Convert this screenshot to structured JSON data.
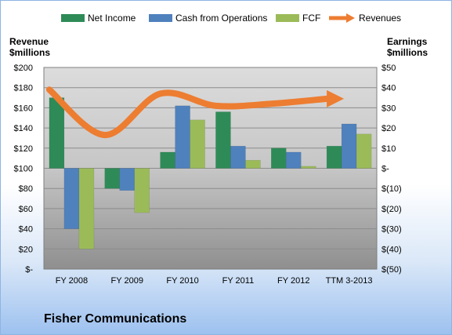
{
  "chart_data": {
    "type": "bar",
    "title": "",
    "footer_title": "Fisher Communications",
    "left_axis_title": [
      "Revenue",
      "$millions"
    ],
    "right_axis_title": [
      "Earnings",
      "$millions"
    ],
    "categories": [
      "FY 2008",
      "FY 2009",
      "FY 2010",
      "FY 2011",
      "FY 2012",
      "TTM 3-2013"
    ],
    "left_ticks": [
      "$-",
      "$20",
      "$40",
      "$60",
      "$80",
      "$100",
      "$120",
      "$140",
      "$160",
      "$180",
      "$200"
    ],
    "right_ticks": [
      "$(50)",
      "$(40)",
      "$(30)",
      "$(20)",
      "$(10)",
      "$-",
      "$10",
      "$20",
      "$30",
      "$40",
      "$50"
    ],
    "ylim_left": [
      0,
      200
    ],
    "ylim_right": [
      -50,
      50
    ],
    "legend_position": "top",
    "grid": true,
    "series": [
      {
        "name": "Net Income",
        "axis": "right",
        "kind": "bar",
        "color": "#2e8b57",
        "values": [
          35,
          -10,
          8,
          28,
          10,
          11
        ]
      },
      {
        "name": "Cash from Operations",
        "axis": "right",
        "kind": "bar",
        "color": "#4f81bd",
        "values": [
          -30,
          -11,
          31,
          11,
          8,
          22
        ]
      },
      {
        "name": "FCF",
        "axis": "right",
        "kind": "bar",
        "color": "#9bbb59",
        "values": [
          -40,
          -22,
          24,
          4,
          1,
          17
        ]
      },
      {
        "name": "Revenues",
        "axis": "left",
        "kind": "line",
        "color": "#ed7d31",
        "values": [
          178,
          133,
          174,
          162,
          164,
          169
        ]
      }
    ]
  }
}
